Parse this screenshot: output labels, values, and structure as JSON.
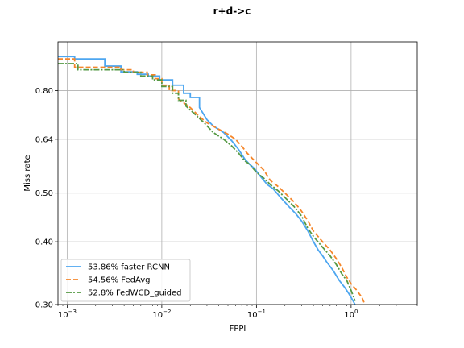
{
  "chart_data": {
    "type": "line",
    "title": "r+d->c",
    "xlabel": "FPPI",
    "ylabel": "Miss rate",
    "x_scale": "log",
    "y_scale": "log",
    "xlim": [
      0.0008,
      5.0
    ],
    "ylim": [
      0.3,
      1.0
    ],
    "x_ticks": [
      {
        "value": 0.001,
        "base": "10",
        "exp": "−3"
      },
      {
        "value": 0.01,
        "base": "10",
        "exp": "−2"
      },
      {
        "value": 0.1,
        "base": "10",
        "exp": "−1"
      },
      {
        "value": 1,
        "base": "10",
        "exp": "0"
      }
    ],
    "y_ticks": [
      {
        "value": 0.3,
        "label": "0.30"
      },
      {
        "value": 0.4,
        "label": "0.40"
      },
      {
        "value": 0.5,
        "label": "0.50"
      },
      {
        "value": 0.64,
        "label": "0.64"
      },
      {
        "value": 0.8,
        "label": "0.80"
      }
    ],
    "grid": true,
    "legend_position": "lower-left",
    "series": [
      {
        "name": "faster RCNN",
        "legend_label": "53.86%  faster RCNN",
        "color": "#4da6f0",
        "dash": "solid",
        "x": [
          0.0008,
          0.0012,
          0.0012,
          0.0025,
          0.0025,
          0.0037,
          0.0037,
          0.0055,
          0.0055,
          0.0072,
          0.0072,
          0.0095,
          0.0095,
          0.013,
          0.013,
          0.017,
          0.017,
          0.02,
          0.02,
          0.025,
          0.025,
          0.03,
          0.035,
          0.045,
          0.055,
          0.065,
          0.075,
          0.085,
          0.095,
          0.11,
          0.13,
          0.15,
          0.18,
          0.22,
          0.26,
          0.3,
          0.35,
          0.4,
          0.45,
          0.5,
          0.55,
          0.65,
          0.75,
          0.85,
          0.95,
          1.05,
          1.1
        ],
        "y": [
          0.935,
          0.935,
          0.925,
          0.925,
          0.895,
          0.895,
          0.872,
          0.872,
          0.862,
          0.862,
          0.855,
          0.855,
          0.84,
          0.84,
          0.82,
          0.82,
          0.79,
          0.79,
          0.775,
          0.775,
          0.74,
          0.7,
          0.68,
          0.66,
          0.635,
          0.61,
          0.585,
          0.57,
          0.56,
          0.54,
          0.52,
          0.51,
          0.49,
          0.47,
          0.455,
          0.44,
          0.42,
          0.4,
          0.385,
          0.375,
          0.365,
          0.35,
          0.335,
          0.325,
          0.315,
          0.305,
          0.3
        ]
      },
      {
        "name": "FedAvg",
        "legend_label": "54.56%  FedAvg",
        "color": "#f5862a",
        "dash": "dashed",
        "x": [
          0.0008,
          0.0012,
          0.0012,
          0.0037,
          0.0037,
          0.005,
          0.005,
          0.007,
          0.007,
          0.0085,
          0.0085,
          0.01,
          0.01,
          0.012,
          0.012,
          0.015,
          0.015,
          0.02,
          0.025,
          0.03,
          0.04,
          0.05,
          0.06,
          0.07,
          0.08,
          0.1,
          0.12,
          0.14,
          0.17,
          0.2,
          0.25,
          0.3,
          0.35,
          0.4,
          0.5,
          0.6,
          0.7,
          0.8,
          0.9,
          1.0,
          1.15,
          1.3,
          1.4
        ],
        "y": [
          0.925,
          0.925,
          0.89,
          0.89,
          0.88,
          0.88,
          0.87,
          0.87,
          0.86,
          0.86,
          0.845,
          0.845,
          0.82,
          0.82,
          0.8,
          0.8,
          0.77,
          0.74,
          0.71,
          0.69,
          0.67,
          0.655,
          0.64,
          0.62,
          0.6,
          0.575,
          0.555,
          0.53,
          0.515,
          0.5,
          0.48,
          0.46,
          0.44,
          0.42,
          0.4,
          0.385,
          0.37,
          0.355,
          0.34,
          0.33,
          0.32,
          0.31,
          0.3
        ]
      },
      {
        "name": "FedWCD_guided",
        "legend_label": "52.8%  FedWCD_guided",
        "color": "#559944",
        "dash": "dashdot",
        "x": [
          0.0008,
          0.0013,
          0.0013,
          0.004,
          0.004,
          0.006,
          0.006,
          0.008,
          0.008,
          0.01,
          0.01,
          0.013,
          0.013,
          0.015,
          0.015,
          0.018,
          0.018,
          0.022,
          0.028,
          0.035,
          0.045,
          0.055,
          0.065,
          0.075,
          0.085,
          0.1,
          0.12,
          0.14,
          0.17,
          0.2,
          0.25,
          0.3,
          0.35,
          0.4,
          0.5,
          0.6,
          0.7,
          0.8,
          0.9,
          1.0,
          1.1
        ],
        "y": [
          0.905,
          0.905,
          0.88,
          0.88,
          0.87,
          0.87,
          0.855,
          0.855,
          0.84,
          0.84,
          0.815,
          0.815,
          0.79,
          0.79,
          0.765,
          0.765,
          0.745,
          0.72,
          0.69,
          0.66,
          0.64,
          0.62,
          0.6,
          0.58,
          0.57,
          0.55,
          0.535,
          0.52,
          0.505,
          0.49,
          0.47,
          0.45,
          0.425,
          0.41,
          0.39,
          0.375,
          0.36,
          0.345,
          0.335,
          0.32,
          0.305
        ]
      }
    ]
  }
}
